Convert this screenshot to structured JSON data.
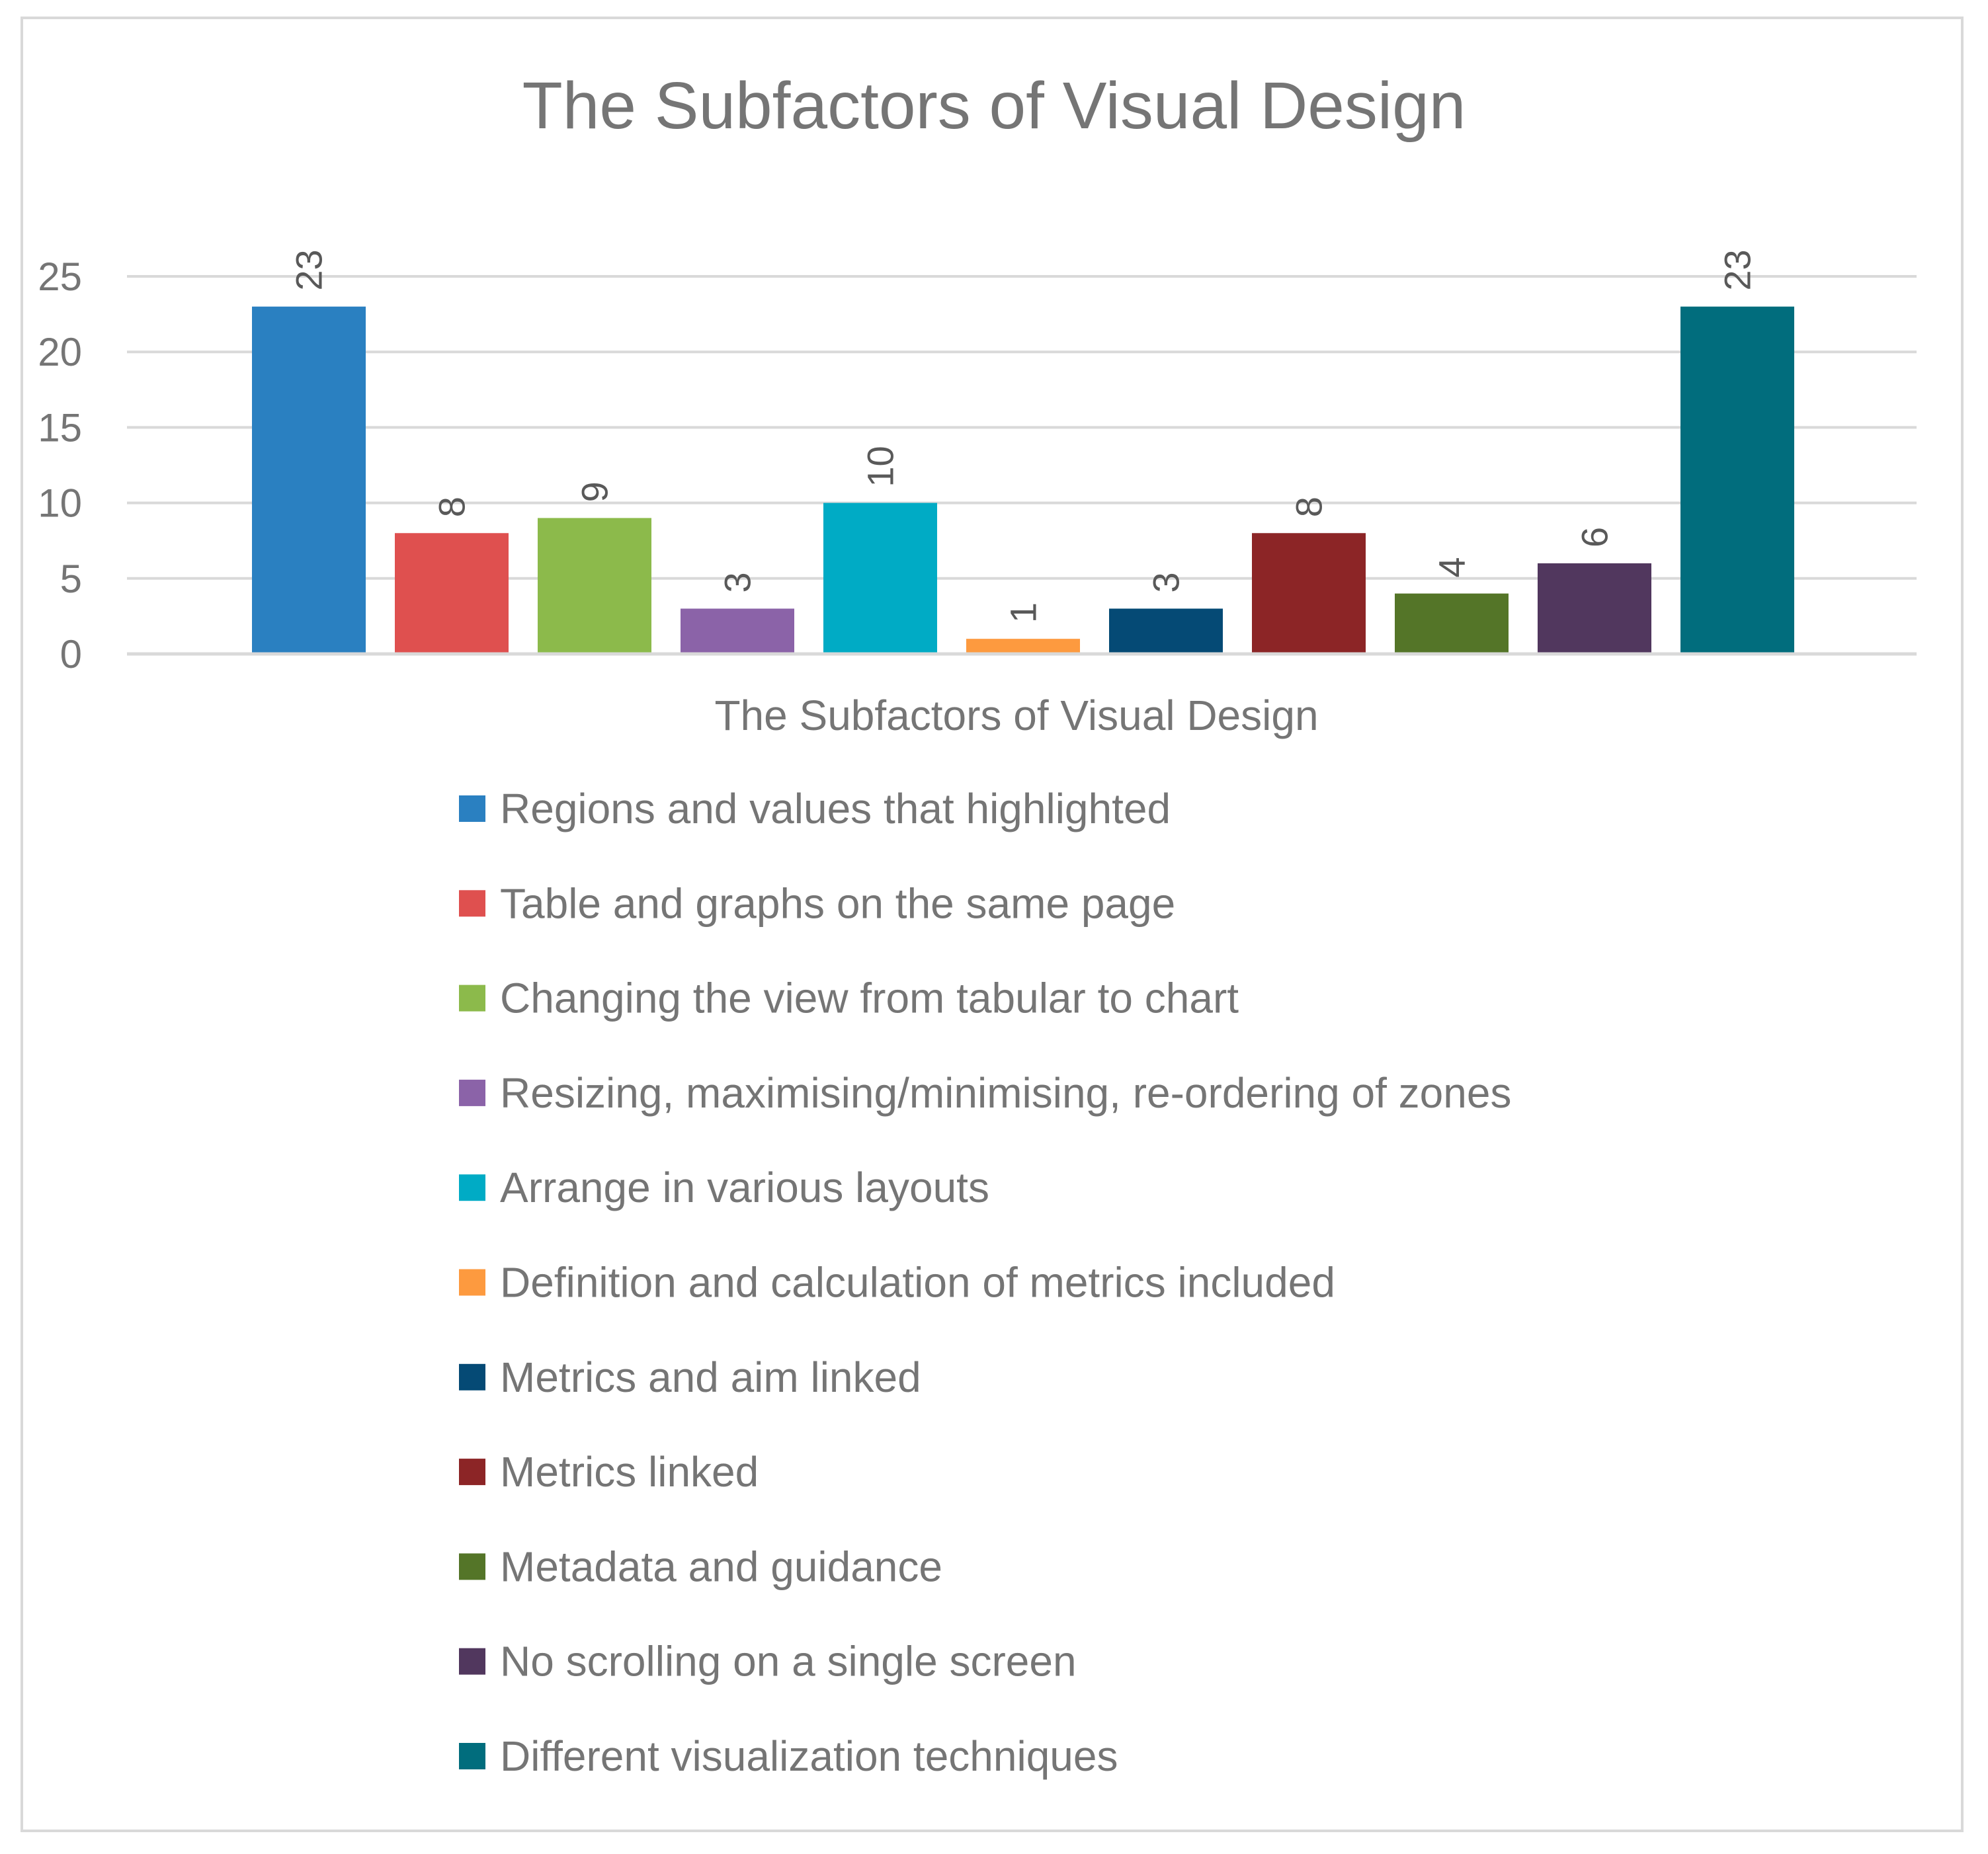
{
  "chart_data": {
    "type": "bar",
    "title": "The Subfactors of Visual Design",
    "xlabel": "The Subfactors of Visual Design",
    "ylabel": "",
    "ylim": [
      0,
      25
    ],
    "yticks": [
      0,
      5,
      10,
      15,
      20,
      25
    ],
    "grid": true,
    "legend_position": "bottom",
    "data_labels_rotated": true,
    "series": [
      {
        "name": "Regions and values that highlighted",
        "value": 23,
        "color": "#2a80c1"
      },
      {
        "name": "Table and graphs on the same page",
        "value": 8,
        "color": "#df504f"
      },
      {
        "name": "Changing the view from tabular to chart",
        "value": 9,
        "color": "#8cba4b"
      },
      {
        "name": "Resizing, maximising/minimising, re-ordering of zones",
        "value": 3,
        "color": "#8b63a8"
      },
      {
        "name": "Arrange in various layouts",
        "value": 10,
        "color": "#00abc5"
      },
      {
        "name": "Definition and calculation of metrics included",
        "value": 1,
        "color": "#fd9a3f"
      },
      {
        "name": "Metrics and aim linked",
        "value": 3,
        "color": "#054a75"
      },
      {
        "name": "Metrics linked",
        "value": 8,
        "color": "#8c2526"
      },
      {
        "name": "Metadata and guidance",
        "value": 4,
        "color": "#547528"
      },
      {
        "name": "No scrolling on a single screen",
        "value": 6,
        "color": "#51375e"
      },
      {
        "name": "Different visualization techniques",
        "value": 23,
        "color": "#016d7d"
      }
    ]
  }
}
